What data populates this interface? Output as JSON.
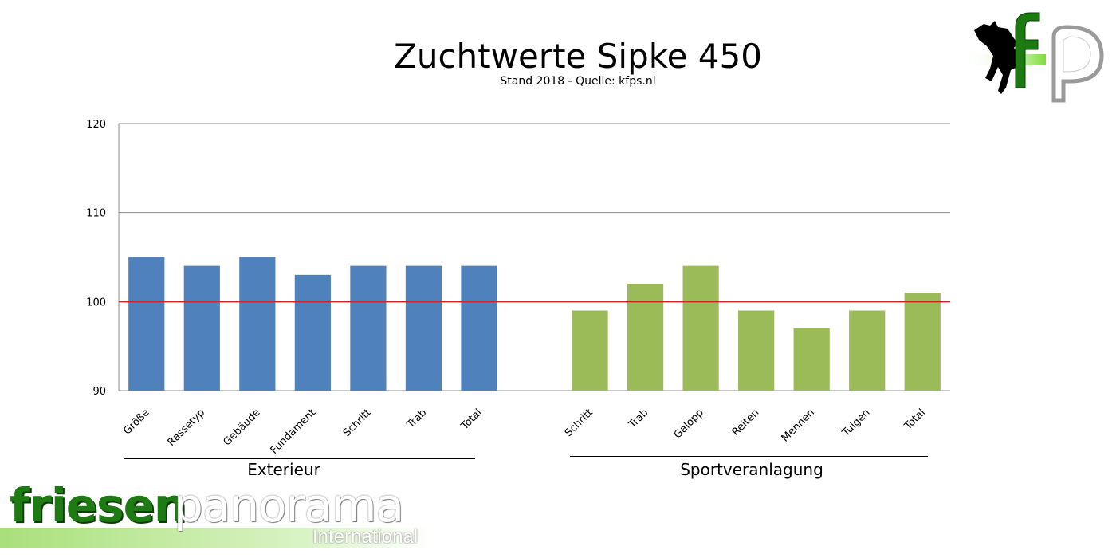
{
  "chart_data": {
    "type": "bar",
    "title": "Zuchtwerte Sipke 450",
    "subtitle": "Stand 2018 - Quelle: kfps.nl",
    "ylim": [
      90,
      120
    ],
    "yticks": [
      90,
      100,
      110,
      120
    ],
    "reference_line": {
      "value": 100,
      "color": "#d42020"
    },
    "grid": true,
    "groups": [
      {
        "label": "Exterieur",
        "color": "#4f81bd",
        "categories": [
          "Größe",
          "Rassetyp",
          "Gebäude",
          "Fundament",
          "Schritt",
          "Trab",
          "Total"
        ],
        "values": [
          105,
          104,
          105,
          103,
          104,
          104,
          104
        ]
      },
      {
        "label": "Sportveranlagung",
        "color": "#9bbb59",
        "categories": [
          "Schritt",
          "Trab",
          "Galopp",
          "Reiten",
          "Mennen",
          "Tuigen",
          "Total"
        ],
        "values": [
          99,
          102,
          104,
          99,
          97,
          99,
          101
        ]
      }
    ]
  },
  "logos": {
    "fp": {
      "text": "fp",
      "icon": "horse-icon"
    },
    "brand": {
      "part1": "friesen",
      "part2": "panorama",
      "part3": "International"
    }
  }
}
